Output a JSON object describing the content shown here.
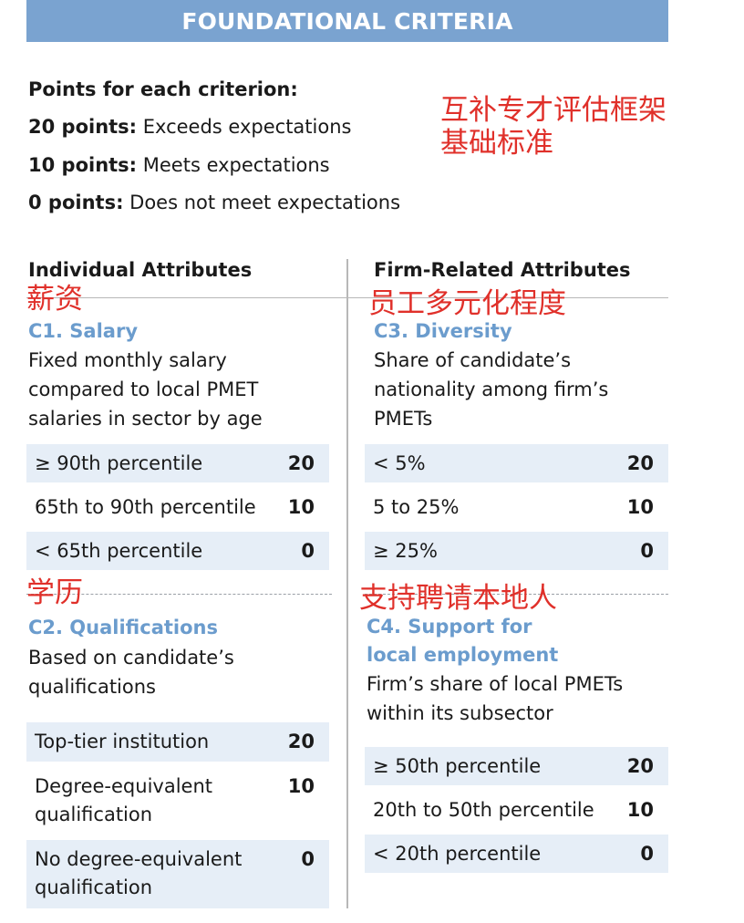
{
  "header": {
    "title": "FOUNDATIONAL CRITERIA"
  },
  "points": {
    "heading": "Points for each criterion:",
    "items": [
      {
        "bold": "20 points:",
        "text": " Exceeds expectations"
      },
      {
        "bold": "10 points:",
        "text": " Meets expectations"
      },
      {
        "bold": "0 points:",
        "text": " Does not meet expectations"
      }
    ]
  },
  "annotations": {
    "title_line1": "互补专才评估框架",
    "title_line2": "基础标准",
    "salary": "薪资",
    "diversity": "员工多元化程度",
    "qualifications": "学历",
    "support": "支持聘请本地人"
  },
  "columns": {
    "individual": "Individual Attributes",
    "firm": "Firm-Related Attributes"
  },
  "criteria": {
    "c1": {
      "title": "C1. Salary",
      "desc": "Fixed monthly salary compared to local PMET salaries in sector by age",
      "rows": [
        {
          "label": "≥ 90th percentile",
          "score": "20"
        },
        {
          "label": "65th to 90th percentile",
          "score": "10"
        },
        {
          "label": "< 65th percentile",
          "score": "0"
        }
      ]
    },
    "c2": {
      "title": "C2. Qualifications",
      "desc": "Based on candidate’s qualifications",
      "rows": [
        {
          "label": "Top-tier institution",
          "score": "20"
        },
        {
          "label": "Degree-equivalent qualification",
          "score": "10"
        },
        {
          "label": "No degree-equivalent qualification",
          "score": "0"
        }
      ]
    },
    "c3": {
      "title": "C3. Diversity",
      "desc": "Share of candidate’s nationality among firm’s PMETs",
      "rows": [
        {
          "label": "< 5%",
          "score": "20"
        },
        {
          "label": "5 to 25%",
          "score": "10"
        },
        {
          "label": "≥ 25%",
          "score": "0"
        }
      ]
    },
    "c4": {
      "title_line1": "C4. Support for",
      "title_line2": "local employment",
      "desc": "Firm’s share of local PMETs within its subsector",
      "rows": [
        {
          "label": "≥ 50th percentile",
          "score": "20"
        },
        {
          "label": "20th to 50th percentile",
          "score": "10"
        },
        {
          "label": "< 20th percentile",
          "score": "0"
        }
      ]
    }
  },
  "colors": {
    "banner": "#7aa3d0",
    "criterion_title": "#6b9ccd",
    "row_shade": "#e6eef7",
    "annotation": "#e0302a"
  }
}
